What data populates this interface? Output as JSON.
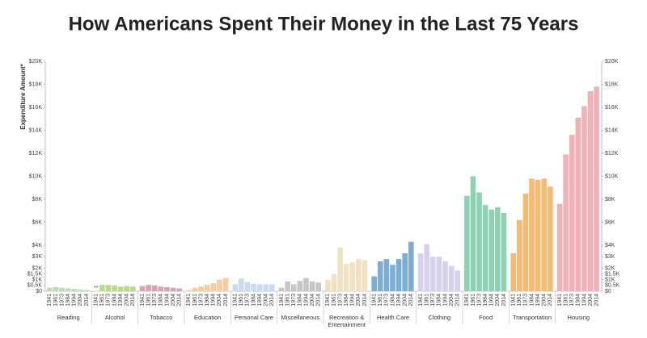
{
  "chart_data": {
    "type": "grouped-bar",
    "title": "How Americans Spent Their Money in the Last 75 Years",
    "y_label": "Expenditure Amount*",
    "years": [
      "1941",
      "1961",
      "1973",
      "1984",
      "1994",
      "2004",
      "2014"
    ],
    "groups": [
      {
        "name": "Reading",
        "color": "#b9dcb0",
        "values": [
          300,
          350,
          300,
          250,
          200,
          150,
          100
        ]
      },
      {
        "name": "Alcohol",
        "color": "#b7da8c",
        "values": [
          null,
          550,
          550,
          500,
          400,
          450,
          400
        ],
        "value_labels": [
          "**",
          null,
          null,
          null,
          null,
          null,
          null
        ]
      },
      {
        "name": "Tobacco",
        "color": "#d6a4ab",
        "values": [
          450,
          550,
          500,
          400,
          350,
          300,
          250
        ]
      },
      {
        "name": "Education",
        "color": "#f8cba2",
        "values": [
          100,
          300,
          400,
          550,
          700,
          1000,
          1150
        ]
      },
      {
        "name": "Personal Care",
        "color": "#cbdaee",
        "values": [
          600,
          1100,
          800,
          650,
          600,
          600,
          600
        ]
      },
      {
        "name": "Miscellaneous",
        "color": "#c6c6c6",
        "values": [
          300,
          850,
          600,
          900,
          1150,
          850,
          750
        ]
      },
      {
        "name": "Recreation & Entertainment",
        "color": "#ede3c2",
        "values": [
          1000,
          1500,
          3800,
          2400,
          2500,
          2800,
          2700
        ]
      },
      {
        "name": "Health Care",
        "color": "#7caed5",
        "values": [
          1300,
          2600,
          2800,
          2300,
          2800,
          3300,
          4300
        ]
      },
      {
        "name": "Clothing",
        "color": "#d5d1ed",
        "values": [
          3300,
          4100,
          3000,
          3000,
          2600,
          2200,
          1800
        ]
      },
      {
        "name": "Food",
        "color": "#8fd2b1",
        "values": [
          8300,
          10000,
          8600,
          7500,
          7100,
          7300,
          6800
        ]
      },
      {
        "name": "Transportation",
        "color": "#f8b972",
        "values": [
          3300,
          6200,
          8500,
          9800,
          9700,
          9800,
          9100
        ]
      },
      {
        "name": "Housing",
        "color": "#efb1b5",
        "values": [
          7600,
          11900,
          13600,
          15100,
          16100,
          17400,
          17800
        ]
      }
    ],
    "ylim": [
      0,
      20000
    ],
    "yticks": [
      {
        "value": 0,
        "label": "$0"
      },
      {
        "value": 500,
        "label": "$0.5K"
      },
      {
        "value": 1000,
        "label": "$1K"
      },
      {
        "value": 1500,
        "label": "$1.5K"
      },
      {
        "value": 2000,
        "label": "$2K"
      },
      {
        "value": 3000,
        "label": "$3K"
      },
      {
        "value": 4000,
        "label": "$4K"
      },
      {
        "value": 6000,
        "label": "$6K"
      },
      {
        "value": 8000,
        "label": "$8K"
      },
      {
        "value": 10000,
        "label": "$10K"
      },
      {
        "value": 12000,
        "label": "$12K"
      },
      {
        "value": 14000,
        "label": "$14K"
      },
      {
        "value": 16000,
        "label": "$16K"
      },
      {
        "value": 18000,
        "label": "$18K"
      },
      {
        "value": 20000,
        "label": "$20K"
      }
    ]
  }
}
